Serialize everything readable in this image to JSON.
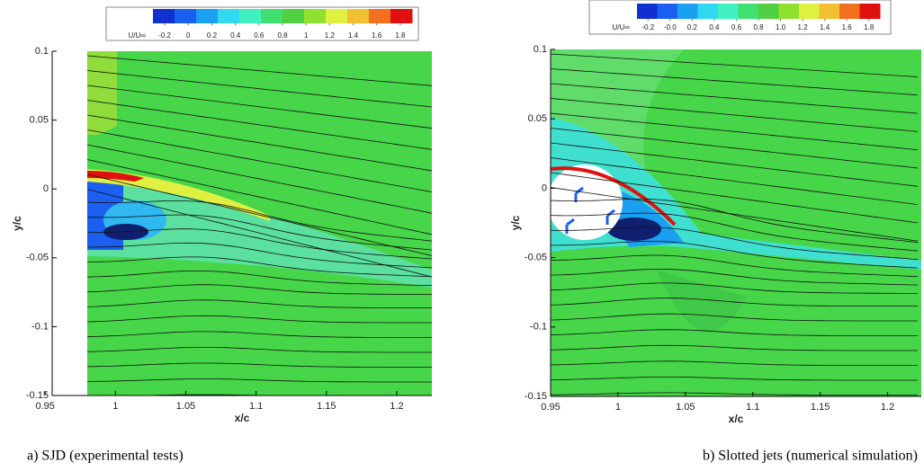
{
  "chart_data": [
    {
      "type": "contour",
      "caption": "a)    SJD (experimental tests)",
      "xlabel": "x/c",
      "ylabel": "y/c",
      "xlim": [
        0.955,
        1.225
      ],
      "ylim": [
        -0.15,
        0.1
      ],
      "xticks": [
        {
          "value": 0.95,
          "label": "0.95"
        },
        1,
        1.05,
        1.1,
        1.15,
        1.2
      ],
      "yticks": [
        0.1,
        0.05,
        0,
        -0.05,
        -0.1,
        -0.15
      ],
      "colorbar": {
        "label": "U/U∞",
        "clim": [
          -0.3,
          1.9
        ],
        "ticks": [
          -0.2,
          0,
          0.2,
          0.4,
          0.6,
          0.8,
          1,
          1.2,
          1.4,
          1.6,
          1.8
        ],
        "colors": [
          "#1030d0",
          "#1a5ff0",
          "#1aa0f0",
          "#30d8f0",
          "#40f0c0",
          "#40e070",
          "#50d040",
          "#90e030",
          "#e0f040",
          "#f0c030",
          "#f07020",
          "#e01010"
        ]
      }
    },
    {
      "type": "contour",
      "caption": "b) Slotted jets (numerical simulation)",
      "xlabel": "x/c",
      "ylabel": "y/c",
      "xlim": [
        0.95,
        1.225
      ],
      "ylim": [
        -0.15,
        0.1
      ],
      "xticks": [
        {
          "value": 0.95,
          "label": "0.95"
        },
        1,
        1.05,
        1.1,
        1.15,
        1.2
      ],
      "yticks": [
        0.1,
        0.05,
        0,
        -0.05,
        -0.1,
        -0.15
      ],
      "colorbar": {
        "label": "U/U∞",
        "clim": [
          -0.3,
          1.9
        ],
        "ticks": [
          -0.2,
          {
            "value": 0,
            "label": "-0.0"
          },
          0.2,
          0.4,
          0.6,
          0.8,
          {
            "value": 1,
            "label": "1.0"
          },
          1.2,
          1.4,
          1.6,
          1.8
        ],
        "colors": [
          "#1030d0",
          "#1a5ff0",
          "#1aa0f0",
          "#30d8f0",
          "#40f0c0",
          "#40e070",
          "#50d040",
          "#90e030",
          "#e0f040",
          "#f0c030",
          "#f07020",
          "#e01010"
        ]
      }
    }
  ]
}
